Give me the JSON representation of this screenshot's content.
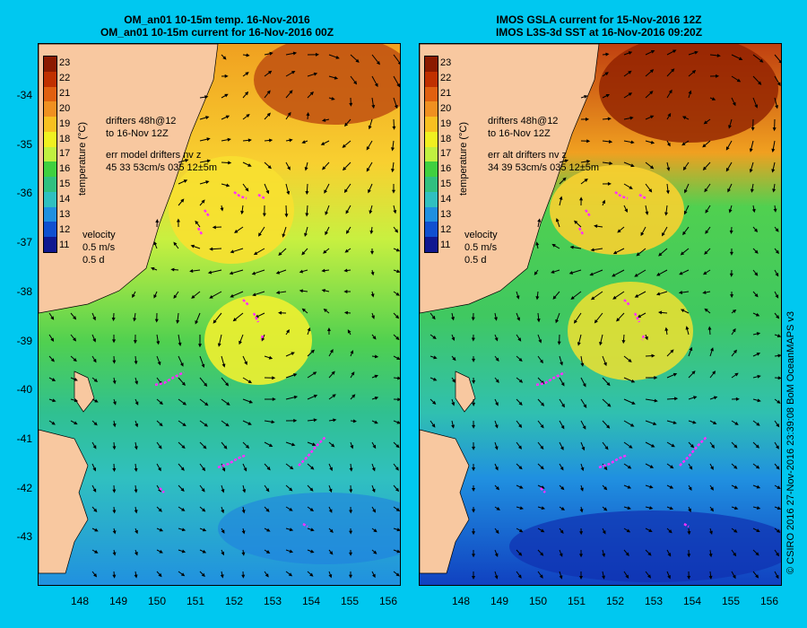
{
  "left_panel": {
    "title_line1": "OM_an01 10-15m temp. 16-Nov-2016",
    "title_line2": "OM_an01 10-15m current for 16-Nov-2016 00Z",
    "drifters_line1": "drifters 48h@12",
    "drifters_line2": "to 16-Nov 12Z",
    "err_line1": "err model drifters nv z",
    "err_line2": "45 33 53cm/s 035 12±5m"
  },
  "right_panel": {
    "title_line1": "IMOS GSLA current for 15-Nov-2016 12Z",
    "title_line2": "IMOS L3S-3d SST at 16-Nov-2016 09:20Z",
    "drifters_line1": "drifters 48h@12",
    "drifters_line2": "to 16-Nov 12Z",
    "err_line1": "err alt drifters nv z",
    "err_line2": "34 39 53cm/s 035 12±5m"
  },
  "velocity_legend": {
    "label": "velocity",
    "speed": "0.5 m/s",
    "duration": "0.5 d"
  },
  "colorbar": {
    "label": "temperature (°C)",
    "ticks": [
      "23",
      "22",
      "21",
      "20",
      "19",
      "18",
      "17",
      "16",
      "15",
      "14",
      "13",
      "12",
      "11"
    ],
    "colors": [
      "#8b1a00",
      "#c03000",
      "#e06010",
      "#f09020",
      "#f8c020",
      "#f0f020",
      "#c0f040",
      "#40d040",
      "#30c080",
      "#30c0c0",
      "#2090e0",
      "#1050d0",
      "#101890"
    ]
  },
  "axes": {
    "lat_ticks": [
      "-34",
      "-35",
      "-36",
      "-37",
      "-38",
      "-39",
      "-40",
      "-41",
      "-42",
      "-43"
    ],
    "lon_ticks": [
      "148",
      "149",
      "150",
      "151",
      "152",
      "153",
      "154",
      "155",
      "156"
    ]
  },
  "credit": "© CSIRO 2016  27-Nov-2016 23:39:08 BoM OceanMAPS v3",
  "map_colors": {
    "land": "#f8c8a0",
    "drifter": "#ff30ff"
  }
}
